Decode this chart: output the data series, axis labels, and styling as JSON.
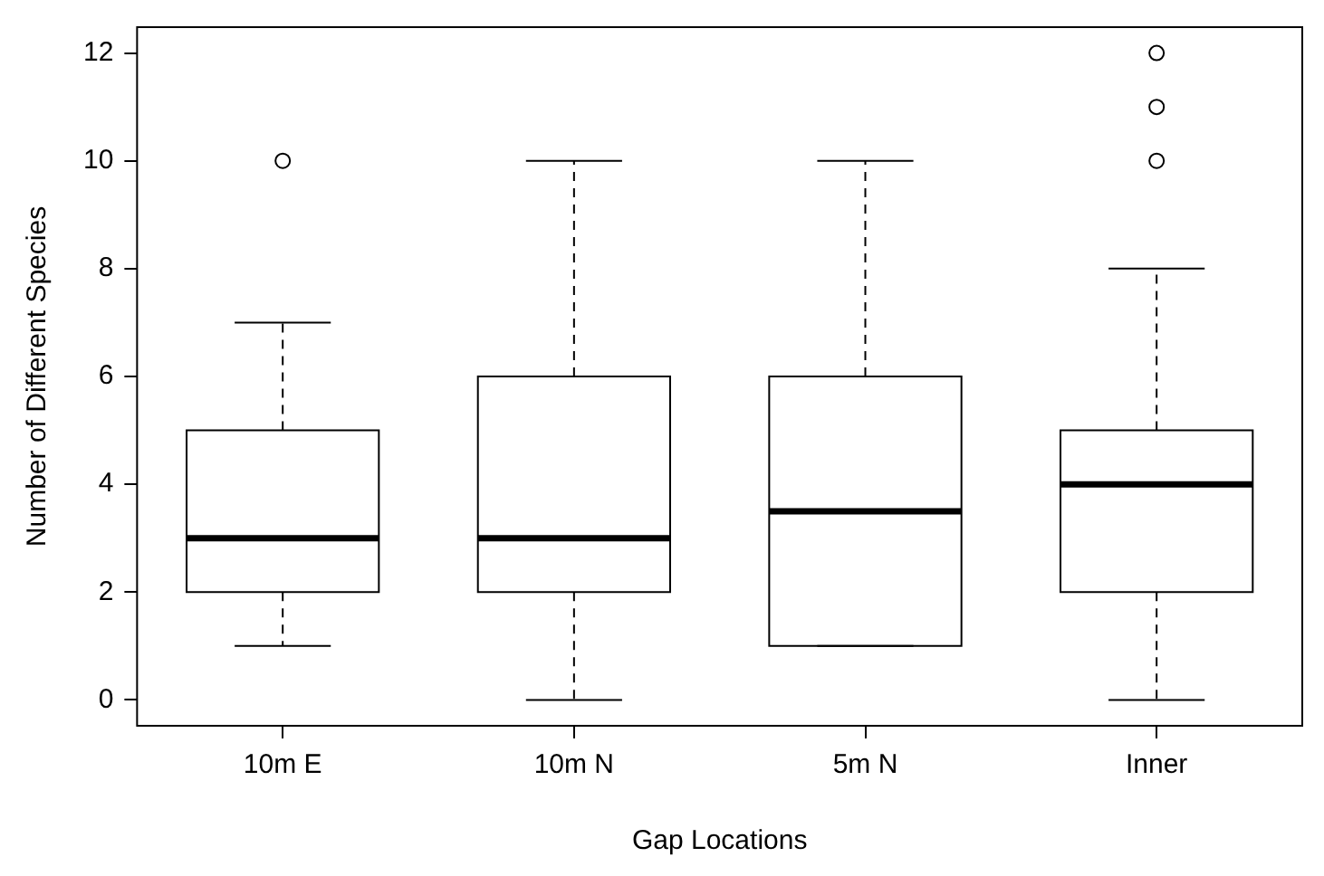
{
  "chart_data": {
    "type": "box",
    "xlabel": "Gap Locations",
    "ylabel": "Number of Different Species",
    "categories": [
      "10m E",
      "10m N",
      "5m N",
      "Inner"
    ],
    "boxes": [
      {
        "low": 1,
        "q1": 2,
        "median": 3,
        "q3": 5,
        "high": 7,
        "outliers": [
          10
        ]
      },
      {
        "low": 0,
        "q1": 2,
        "median": 3,
        "q3": 6,
        "high": 10
      },
      {
        "low": 1,
        "q1": 1,
        "median": 3.5,
        "q3": 6,
        "high": 10
      },
      {
        "low": 0,
        "q1": 2,
        "median": 4,
        "q3": 5,
        "high": 8,
        "outliers": [
          10,
          11,
          12
        ]
      }
    ],
    "color": "#000000",
    "ylim": [
      -0.48,
      12.48
    ],
    "yticks": [
      0,
      2,
      4,
      6,
      8,
      10,
      12
    ],
    "grid": false,
    "legend": false,
    "line_style": "dashed",
    "marker": "circle"
  }
}
